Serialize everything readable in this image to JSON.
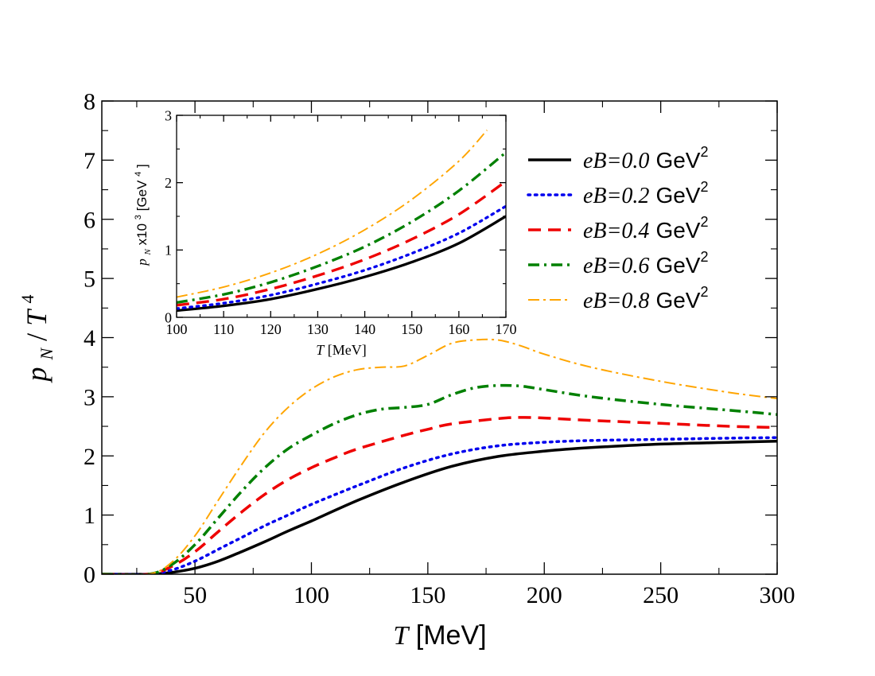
{
  "chart_data": [
    {
      "id": "main",
      "type": "line",
      "xlabel_var": "T",
      "xlabel_unit": "[MeV]",
      "ylabel_num": "p",
      "ylabel_sub": "N",
      "ylabel_den": "T",
      "ylabel_sup": "4",
      "xlim": [
        10,
        300
      ],
      "ylim": [
        0,
        8
      ],
      "xticks": [
        50,
        100,
        150,
        200,
        250,
        300
      ],
      "yticks": [
        0,
        1,
        2,
        3,
        4,
        5,
        6,
        7,
        8
      ],
      "grid": false,
      "legend_position": "top-right",
      "series": [
        {
          "name": "eB=0.0",
          "color": "#000000",
          "style": "solid",
          "x": [
            10,
            30,
            40,
            50,
            60,
            70,
            80,
            90,
            100,
            120,
            140,
            160,
            180,
            200,
            220,
            250,
            280,
            300
          ],
          "y": [
            0,
            0,
            0.03,
            0.1,
            0.22,
            0.38,
            0.55,
            0.73,
            0.9,
            1.25,
            1.56,
            1.82,
            1.99,
            2.08,
            2.14,
            2.2,
            2.23,
            2.25
          ]
        },
        {
          "name": "eB=0.2",
          "color": "#0000ee",
          "style": "dotted",
          "x": [
            10,
            30,
            40,
            50,
            60,
            70,
            80,
            90,
            100,
            120,
            140,
            160,
            180,
            200,
            220,
            250,
            280,
            300
          ],
          "y": [
            0,
            0,
            0.07,
            0.22,
            0.42,
            0.62,
            0.82,
            1.0,
            1.18,
            1.5,
            1.8,
            2.03,
            2.17,
            2.23,
            2.26,
            2.28,
            2.3,
            2.31
          ]
        },
        {
          "name": "eB=0.4",
          "color": "#ee0000",
          "style": "dashed",
          "x": [
            10,
            30,
            40,
            50,
            60,
            70,
            80,
            90,
            100,
            110,
            120,
            140,
            150,
            160,
            180,
            190,
            200,
            220,
            250,
            280,
            300
          ],
          "y": [
            0,
            0,
            0.13,
            0.38,
            0.72,
            1.05,
            1.35,
            1.6,
            1.8,
            1.97,
            2.12,
            2.35,
            2.45,
            2.54,
            2.63,
            2.65,
            2.64,
            2.6,
            2.55,
            2.5,
            2.48
          ]
        },
        {
          "name": "eB=0.6",
          "color": "#008000",
          "style": "dashdot",
          "x": [
            10,
            30,
            40,
            50,
            60,
            70,
            80,
            90,
            100,
            110,
            120,
            130,
            140,
            150,
            160,
            170,
            180,
            190,
            200,
            220,
            250,
            280,
            300
          ],
          "y": [
            0,
            0,
            0.16,
            0.5,
            0.95,
            1.4,
            1.8,
            2.12,
            2.35,
            2.55,
            2.7,
            2.79,
            2.82,
            2.87,
            3.03,
            3.15,
            3.19,
            3.18,
            3.12,
            3.0,
            2.87,
            2.77,
            2.7
          ]
        },
        {
          "name": "eB=0.8",
          "color": "#ffa500",
          "style": "dashdot-thin",
          "x": [
            10,
            30,
            40,
            50,
            60,
            70,
            80,
            90,
            100,
            110,
            120,
            130,
            140,
            150,
            160,
            170,
            180,
            190,
            200,
            220,
            250,
            280,
            300
          ],
          "y": [
            0,
            0,
            0.2,
            0.65,
            1.25,
            1.85,
            2.4,
            2.82,
            3.13,
            3.34,
            3.46,
            3.5,
            3.52,
            3.7,
            3.9,
            3.96,
            3.96,
            3.86,
            3.72,
            3.5,
            3.26,
            3.07,
            2.97
          ]
        }
      ]
    },
    {
      "id": "inset",
      "type": "line",
      "xlabel_var": "T",
      "xlabel_unit": "[MeV]",
      "ylabel_var": "p",
      "ylabel_sub": "N",
      "ylabel_mid": "x10",
      "ylabel_exp": "3",
      "ylabel_unit": "[GeV",
      "ylabel_unit_exp": "4",
      "ylabel_close": "]",
      "xlim": [
        100,
        170
      ],
      "ylim": [
        0,
        3
      ],
      "xticks": [
        100,
        110,
        120,
        130,
        140,
        150,
        160,
        170
      ],
      "yticks": [
        0,
        1,
        2,
        3
      ],
      "grid": false,
      "series": [
        {
          "name": "eB=0.0",
          "color": "#000000",
          "style": "solid",
          "x": [
            100,
            110,
            120,
            130,
            140,
            150,
            160,
            170
          ],
          "y": [
            0.1,
            0.17,
            0.27,
            0.42,
            0.6,
            0.82,
            1.1,
            1.5
          ]
        },
        {
          "name": "eB=0.2",
          "color": "#0000ee",
          "style": "dotted",
          "x": [
            100,
            110,
            120,
            130,
            140,
            150,
            160,
            170
          ],
          "y": [
            0.13,
            0.21,
            0.33,
            0.5,
            0.7,
            0.95,
            1.25,
            1.65
          ]
        },
        {
          "name": "eB=0.4",
          "color": "#ee0000",
          "style": "dashed",
          "x": [
            100,
            110,
            120,
            130,
            140,
            150,
            160,
            170
          ],
          "y": [
            0.18,
            0.27,
            0.42,
            0.62,
            0.86,
            1.16,
            1.53,
            2.02
          ]
        },
        {
          "name": "eB=0.6",
          "color": "#008000",
          "style": "dashdot",
          "x": [
            100,
            110,
            120,
            130,
            140,
            150,
            160,
            170
          ],
          "y": [
            0.22,
            0.34,
            0.52,
            0.76,
            1.05,
            1.42,
            1.88,
            2.45
          ]
        },
        {
          "name": "eB=0.8",
          "color": "#ffa500",
          "style": "dashdot-thin",
          "x": [
            100,
            110,
            120,
            130,
            140,
            150,
            160,
            166
          ],
          "y": [
            0.3,
            0.45,
            0.66,
            0.94,
            1.3,
            1.75,
            2.32,
            2.78
          ]
        }
      ]
    }
  ],
  "legend": [
    {
      "label_var": "eB=0.0",
      "label_unit": "GeV",
      "label_exp": "2",
      "color": "#000000",
      "style": "solid"
    },
    {
      "label_var": "eB=0.2",
      "label_unit": "GeV",
      "label_exp": "2",
      "color": "#0000ee",
      "style": "dotted"
    },
    {
      "label_var": "eB=0.4",
      "label_unit": "GeV",
      "label_exp": "2",
      "color": "#ee0000",
      "style": "dashed"
    },
    {
      "label_var": "eB=0.6",
      "label_unit": "GeV",
      "label_exp": "2",
      "color": "#008000",
      "style": "dashdot"
    },
    {
      "label_var": "eB=0.8",
      "label_unit": "GeV",
      "label_exp": "2",
      "color": "#ffa500",
      "style": "dashdot-thin"
    }
  ]
}
